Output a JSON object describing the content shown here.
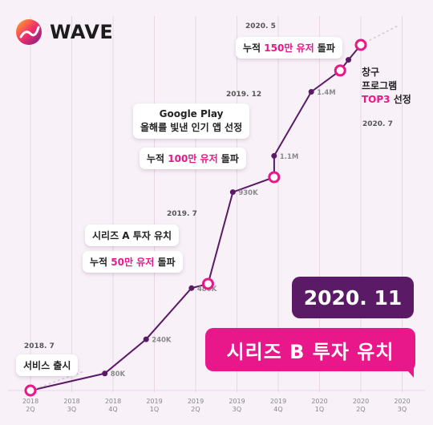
{
  "brand": {
    "name": "WAVE"
  },
  "chart_data": {
    "type": "line",
    "title": "",
    "xlabel": "",
    "ylabel": "",
    "grid": true,
    "x_ticks": [
      [
        "2018",
        "2Q"
      ],
      [
        "2018",
        "3Q"
      ],
      [
        "2018",
        "4Q"
      ],
      [
        "2019",
        "1Q"
      ],
      [
        "2019",
        "2Q"
      ],
      [
        "2019",
        "3Q"
      ],
      [
        "2019",
        "4Q"
      ],
      [
        "2020",
        "1Q"
      ],
      [
        "2020",
        "2Q"
      ],
      [
        "2020",
        "3Q"
      ]
    ],
    "points": [
      {
        "t": 0.0,
        "value": 0,
        "label": "",
        "milestone": true
      },
      {
        "t": 1.8,
        "value": 80,
        "label": "80K",
        "milestone": false
      },
      {
        "t": 2.8,
        "value": 240,
        "label": "240K",
        "milestone": false
      },
      {
        "t": 3.9,
        "value": 480,
        "label": "480K",
        "milestone": false
      },
      {
        "t": 4.3,
        "value": 500,
        "label": "",
        "milestone": true
      },
      {
        "t": 4.9,
        "value": 930,
        "label": "930K",
        "milestone": false
      },
      {
        "t": 5.9,
        "value": 1000,
        "label": "",
        "milestone": true
      },
      {
        "t": 5.9,
        "value": 1100,
        "label": "1.1M",
        "milestone": false
      },
      {
        "t": 6.8,
        "value": 1400,
        "label": "1.4M",
        "milestone": false
      },
      {
        "t": 7.5,
        "value": 1500,
        "label": "",
        "milestone": true
      },
      {
        "t": 7.7,
        "value": 1550,
        "label": "",
        "milestone": false
      },
      {
        "t": 8.0,
        "value": 1620,
        "label": "",
        "milestone": true
      }
    ]
  },
  "annotations": {
    "service_launch": {
      "date": "2018. 7",
      "text": "서비스 출시"
    },
    "series_a": {
      "date": "2019. 7",
      "text": "시리즈 A 투자 유치",
      "users_pre": "누적 ",
      "users_hl": "50만 유저",
      "users_post": " 돌파"
    },
    "google_play": {
      "date": "2019. 12",
      "line1": "Google Play",
      "line2": "올해를 빛낸 인기 앱 선정",
      "users_pre": "누적 ",
      "users_hl": "100만 유저",
      "users_post": " 돌파"
    },
    "users_150": {
      "date": "2020. 5",
      "pre": "누적 ",
      "hl": "150만 유저",
      "post": " 돌파"
    },
    "changgu": {
      "line1": "창구",
      "line2": "프로그램",
      "line3_hl": "TOP3",
      "line3_post": " 선정",
      "date": "2020. 7"
    },
    "series_b": {
      "date": "2020. 11",
      "text": "시리즈 B 투자 유치"
    }
  },
  "colors": {
    "line": "#5a1a66",
    "milestone": "#e8178a",
    "highlight": "#e8178a",
    "grid": "#e6d6e6"
  }
}
